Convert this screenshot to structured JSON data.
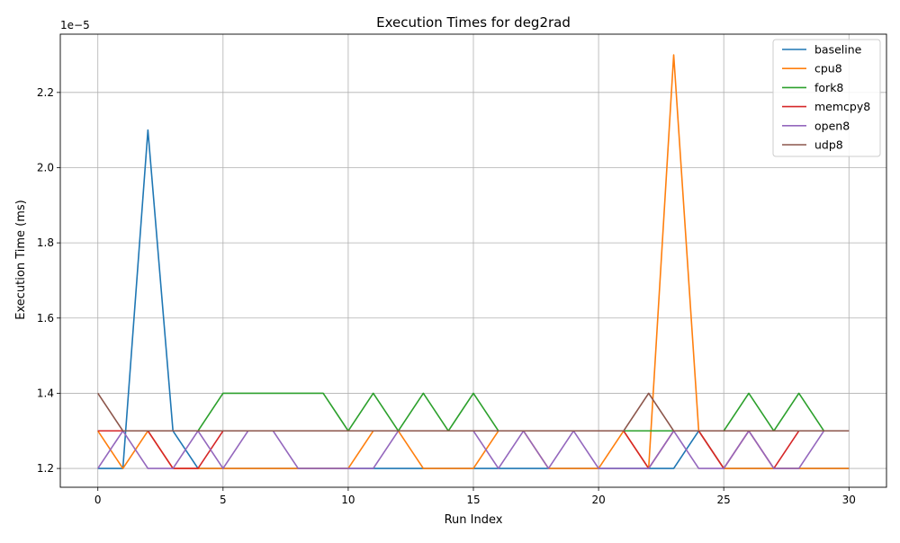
{
  "chart_data": {
    "type": "line",
    "title": "Execution Times for deg2rad",
    "xlabel": "Run Index",
    "ylabel": "Execution Time (ms)",
    "y_offset_text": "1e−5",
    "xlim": [
      -1.5,
      31.5
    ],
    "ylim": [
      1.15,
      2.355
    ],
    "y_scale_note": "values in units of 1e-5",
    "xticks": [
      0,
      5,
      10,
      15,
      20,
      25,
      30
    ],
    "xtick_labels": [
      "0",
      "5",
      "10",
      "15",
      "20",
      "25",
      "30"
    ],
    "yticks": [
      1.2,
      1.4,
      1.6,
      1.8,
      2.0,
      2.2
    ],
    "ytick_labels": [
      "1.2",
      "1.4",
      "1.6",
      "1.8",
      "2.0",
      "2.2"
    ],
    "grid": true,
    "legend_position": "upper right",
    "x": [
      0,
      1,
      2,
      3,
      4,
      5,
      6,
      7,
      8,
      9,
      10,
      11,
      12,
      13,
      14,
      15,
      16,
      17,
      18,
      19,
      20,
      21,
      22,
      23,
      24,
      25,
      26,
      27,
      28,
      29,
      30
    ],
    "series": [
      {
        "name": "baseline",
        "color": "#1f77b4",
        "values": [
          1.2,
          1.2,
          2.1,
          1.3,
          1.2,
          1.2,
          1.2,
          1.2,
          1.2,
          1.2,
          1.2,
          1.2,
          1.2,
          1.2,
          1.2,
          1.2,
          1.2,
          1.2,
          1.2,
          1.2,
          1.2,
          1.2,
          1.2,
          1.2,
          1.3,
          1.2,
          1.2,
          1.2,
          1.2,
          1.2,
          1.2
        ]
      },
      {
        "name": "cpu8",
        "color": "#ff7f0e",
        "values": [
          1.3,
          1.2,
          1.3,
          1.2,
          1.2,
          1.2,
          1.2,
          1.2,
          1.2,
          1.2,
          1.2,
          1.3,
          1.3,
          1.2,
          1.2,
          1.2,
          1.3,
          1.3,
          1.2,
          1.2,
          1.2,
          1.3,
          1.2,
          2.3,
          1.3,
          1.2,
          1.2,
          1.2,
          1.2,
          1.2,
          1.2
        ]
      },
      {
        "name": "fork8",
        "color": "#2ca02c",
        "values": [
          1.3,
          1.3,
          1.3,
          1.3,
          1.3,
          1.4,
          1.4,
          1.4,
          1.4,
          1.4,
          1.3,
          1.4,
          1.3,
          1.4,
          1.3,
          1.4,
          1.3,
          1.3,
          1.3,
          1.3,
          1.3,
          1.3,
          1.3,
          1.3,
          1.3,
          1.3,
          1.4,
          1.3,
          1.4,
          1.3,
          1.3
        ]
      },
      {
        "name": "memcpy8",
        "color": "#d62728",
        "values": [
          1.3,
          1.3,
          1.3,
          1.2,
          1.2,
          1.3,
          1.3,
          1.3,
          1.3,
          1.3,
          1.3,
          1.3,
          1.3,
          1.3,
          1.3,
          1.3,
          1.3,
          1.3,
          1.3,
          1.3,
          1.3,
          1.3,
          1.2,
          1.3,
          1.3,
          1.2,
          1.3,
          1.2,
          1.3,
          1.3,
          1.3
        ]
      },
      {
        "name": "open8",
        "color": "#9467bd",
        "values": [
          1.2,
          1.3,
          1.2,
          1.2,
          1.3,
          1.2,
          1.3,
          1.3,
          1.2,
          1.2,
          1.2,
          1.2,
          1.3,
          1.3,
          1.3,
          1.3,
          1.2,
          1.3,
          1.2,
          1.3,
          1.2,
          1.2,
          1.2,
          1.3,
          1.2,
          1.2,
          1.3,
          1.2,
          1.2,
          1.3,
          1.3
        ]
      },
      {
        "name": "udp8",
        "color": "#8c564b",
        "values": [
          1.4,
          1.3,
          1.3,
          1.3,
          1.3,
          1.3,
          1.3,
          1.3,
          1.3,
          1.3,
          1.3,
          1.3,
          1.3,
          1.3,
          1.3,
          1.3,
          1.3,
          1.3,
          1.3,
          1.3,
          1.3,
          1.3,
          1.4,
          1.3,
          1.3,
          1.3,
          1.3,
          1.3,
          1.3,
          1.3,
          1.3
        ]
      }
    ]
  }
}
